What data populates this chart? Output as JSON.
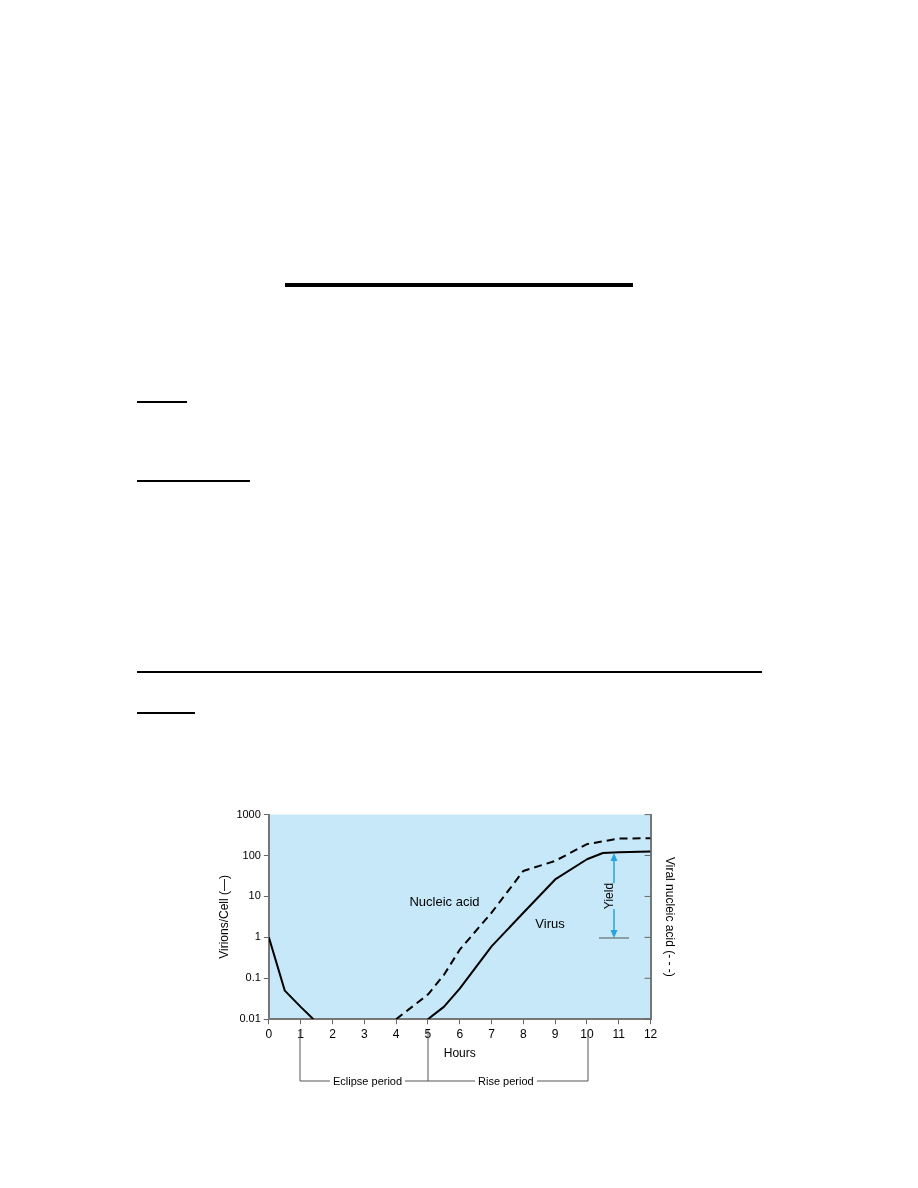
{
  "chart_data": {
    "type": "line",
    "xlabel": "Hours",
    "ylabel": "Virions/Cell (—)",
    "y2label": "Viral nucleic acid (- - -)",
    "xlim": [
      0,
      12
    ],
    "xticks": [
      0,
      1,
      2,
      3,
      4,
      5,
      6,
      7,
      8,
      9,
      10,
      11,
      12
    ],
    "ylim": [
      0.01,
      1000
    ],
    "yticks": [
      0.01,
      0.1,
      1,
      10,
      100,
      1000
    ],
    "log": "y",
    "series": [
      {
        "name": "Virus",
        "color": "#000000",
        "line_style": "solid",
        "x": [
          0,
          0.5,
          1,
          1.4,
          3,
          5,
          5.5,
          6,
          7,
          8,
          9,
          10,
          10.5,
          11,
          12
        ],
        "values": [
          1,
          0.05,
          0.02,
          0.01,
          null,
          0.01,
          0.02,
          0.056,
          0.6,
          4,
          26,
          81,
          115,
          120,
          125
        ]
      },
      {
        "name": "Nucleic acid",
        "color": "#000000",
        "line_style": "dashed",
        "x": [
          4,
          4.5,
          5,
          5.5,
          6,
          7,
          8,
          9,
          10,
          11,
          12
        ],
        "values": [
          0.01,
          0.02,
          0.04,
          0.12,
          0.5,
          4,
          42,
          74,
          190,
          260,
          265
        ]
      }
    ],
    "annotations": [
      "Yield",
      "Eclipse period",
      "Rise period"
    ],
    "grid": false,
    "legend": false,
    "marker": "none"
  }
}
